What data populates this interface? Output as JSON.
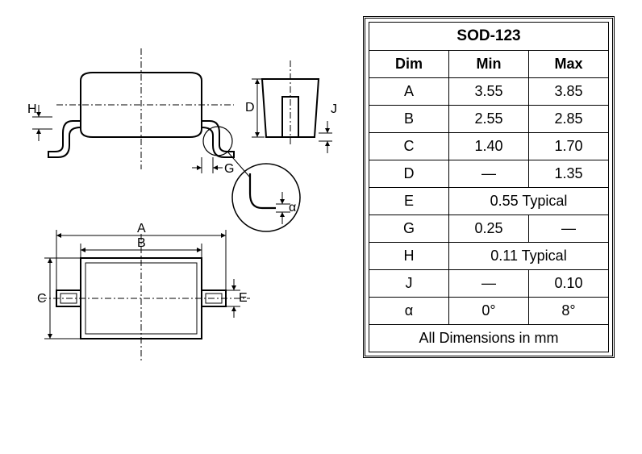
{
  "table": {
    "title": "SOD-123",
    "headers": [
      "Dim",
      "Min",
      "Max"
    ],
    "rows": [
      {
        "dim": "A",
        "min": "3.55",
        "max": "3.85"
      },
      {
        "dim": "B",
        "min": "2.55",
        "max": "2.85"
      },
      {
        "dim": "C",
        "min": "1.40",
        "max": "1.70"
      },
      {
        "dim": "D",
        "min": "—",
        "max": "1.35"
      },
      {
        "dim": "E",
        "span": "0.55 Typical"
      },
      {
        "dim": "G",
        "min": "0.25",
        "max": "—"
      },
      {
        "dim": "H",
        "span": "0.11 Typical"
      },
      {
        "dim": "J",
        "min": "—",
        "max": "0.10"
      },
      {
        "dim": "α",
        "min": "0°",
        "max": "8°"
      }
    ],
    "footer": "All Dimensions in mm"
  },
  "diagram": {
    "labels": {
      "A": "A",
      "B": "B",
      "C": "C",
      "D": "D",
      "E": "E",
      "G": "G",
      "H": "H",
      "J": "J",
      "alpha": "α"
    },
    "stroke": "#000000",
    "stroke_width": 1.5,
    "background": "#ffffff"
  }
}
